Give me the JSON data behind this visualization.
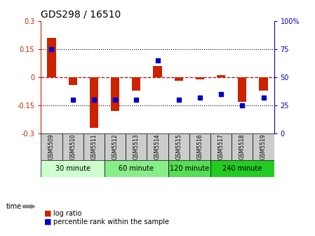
{
  "title": "GDS298 / 16510",
  "samples": [
    "GSM5509",
    "GSM5510",
    "GSM5511",
    "GSM5512",
    "GSM5513",
    "GSM5514",
    "GSM5515",
    "GSM5516",
    "GSM5517",
    "GSM5518",
    "GSM5519"
  ],
  "log_ratio": [
    0.21,
    -0.04,
    -0.27,
    -0.18,
    -0.07,
    0.06,
    -0.02,
    -0.01,
    0.01,
    -0.13,
    -0.07
  ],
  "percentile": [
    75,
    30,
    30,
    30,
    30,
    65,
    30,
    32,
    35,
    25,
    32
  ],
  "ylim": [
    -0.3,
    0.3
  ],
  "yticks_left": [
    -0.3,
    -0.15,
    0,
    0.15,
    0.3
  ],
  "yticks_right": [
    0,
    25,
    50,
    75,
    100
  ],
  "hlines": [
    -0.15,
    0,
    0.15
  ],
  "groups": [
    {
      "label": "30 minute",
      "start": 0,
      "end": 3,
      "color": "#ccffcc"
    },
    {
      "label": "60 minute",
      "start": 3,
      "end": 6,
      "color": "#88ee88"
    },
    {
      "label": "120 minute",
      "start": 6,
      "end": 8,
      "color": "#55dd55"
    },
    {
      "label": "240 minute",
      "start": 8,
      "end": 11,
      "color": "#22cc22"
    }
  ],
  "bar_color": "#cc2200",
  "dot_color": "#0000cc",
  "zero_line_color": "#cc0000",
  "bg_color": "#ffffff",
  "sample_bg": "#cccccc",
  "legend_items": [
    {
      "label": "log ratio",
      "color": "#cc2200"
    },
    {
      "label": "percentile rank within the sample",
      "color": "#0000cc"
    }
  ]
}
